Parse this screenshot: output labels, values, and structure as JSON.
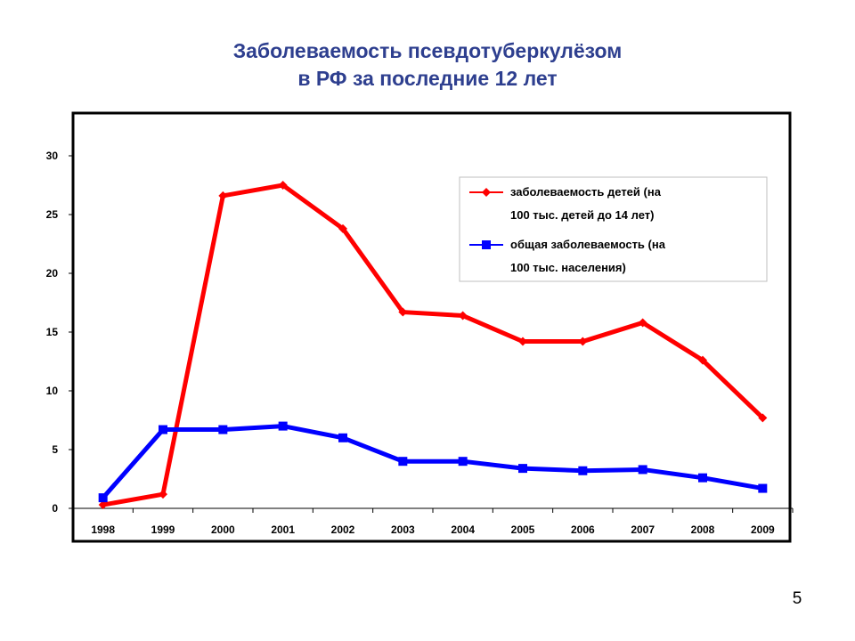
{
  "slide": {
    "title_line1": "Заболеваемость псевдотуберкулёзом",
    "title_line2": "в РФ за последние 12 лет",
    "page_number": "5"
  },
  "colors": {
    "title": "#2e3f8f",
    "series_children": "#ff0000",
    "series_total": "#0000ff"
  },
  "chart_data": {
    "type": "line",
    "title": "",
    "xlabel": "",
    "ylabel": "",
    "categories": [
      "1998",
      "1999",
      "2000",
      "2001",
      "2002",
      "2003",
      "2004",
      "2005",
      "2006",
      "2007",
      "2008",
      "2009"
    ],
    "ylim": [
      0,
      30
    ],
    "yticks": [
      "0",
      "5",
      "10",
      "15",
      "20",
      "25",
      "30"
    ],
    "grid": false,
    "legend_position": "top-right",
    "series": [
      {
        "name": "заболеваемость детей (на 100 тыс. детей до 14 лет)",
        "legend_line1": "заболеваемость детей (на",
        "legend_line2": "100 тыс. детей до 14 лет)",
        "marker": "diamond",
        "color": "#ff0000",
        "values": [
          0.3,
          1.2,
          26.6,
          27.5,
          23.8,
          16.7,
          16.4,
          14.2,
          14.2,
          15.8,
          12.6,
          7.7
        ]
      },
      {
        "name": "общая заболеваемость (на 100 тыс. населения)",
        "legend_line1": "общая заболеваемость (на",
        "legend_line2": "100 тыс. населения)",
        "marker": "square",
        "color": "#0000ff",
        "values": [
          0.9,
          6.7,
          6.7,
          7.0,
          6.0,
          4.0,
          4.0,
          3.4,
          3.2,
          3.3,
          2.6,
          1.7
        ]
      }
    ]
  }
}
